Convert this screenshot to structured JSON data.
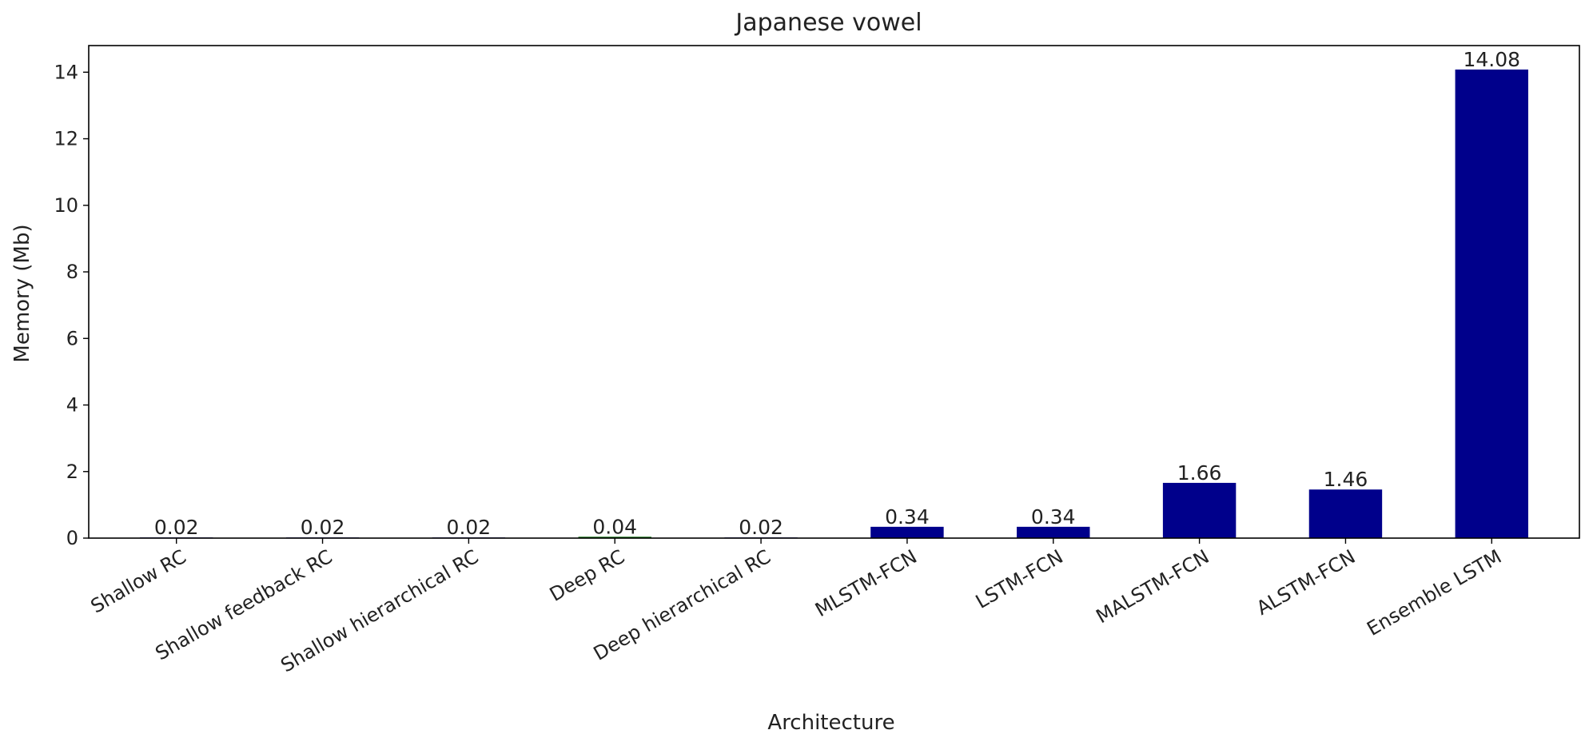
{
  "chart_data": {
    "type": "bar",
    "title": "Japanese vowel",
    "xlabel": "Architecture",
    "ylabel": "Memory (Mb)",
    "ylim": [
      0,
      14.8
    ],
    "yticks": [
      0,
      2,
      4,
      6,
      8,
      10,
      12,
      14
    ],
    "grid": false,
    "categories": [
      "Shallow RC",
      "Shallow feedback RC",
      "Shallow hierarchical RC",
      "Deep RC",
      "Deep hierarchical RC",
      "MLSTM-FCN",
      "LSTM-FCN",
      "MALSTM-FCN",
      "ALSTM-FCN",
      "Ensemble LSTM"
    ],
    "values": [
      0.02,
      0.02,
      0.02,
      0.04,
      0.02,
      0.34,
      0.34,
      1.66,
      1.46,
      14.08
    ],
    "value_labels": [
      "0.02",
      "0.02",
      "0.02",
      "0.04",
      "0.02",
      "0.34",
      "0.34",
      "1.66",
      "1.46",
      "14.08"
    ],
    "colors": [
      "#00008b",
      "#00008b",
      "#00008b",
      "#006400",
      "#00008b",
      "#00008b",
      "#00008b",
      "#00008b",
      "#00008b",
      "#00008b"
    ]
  }
}
